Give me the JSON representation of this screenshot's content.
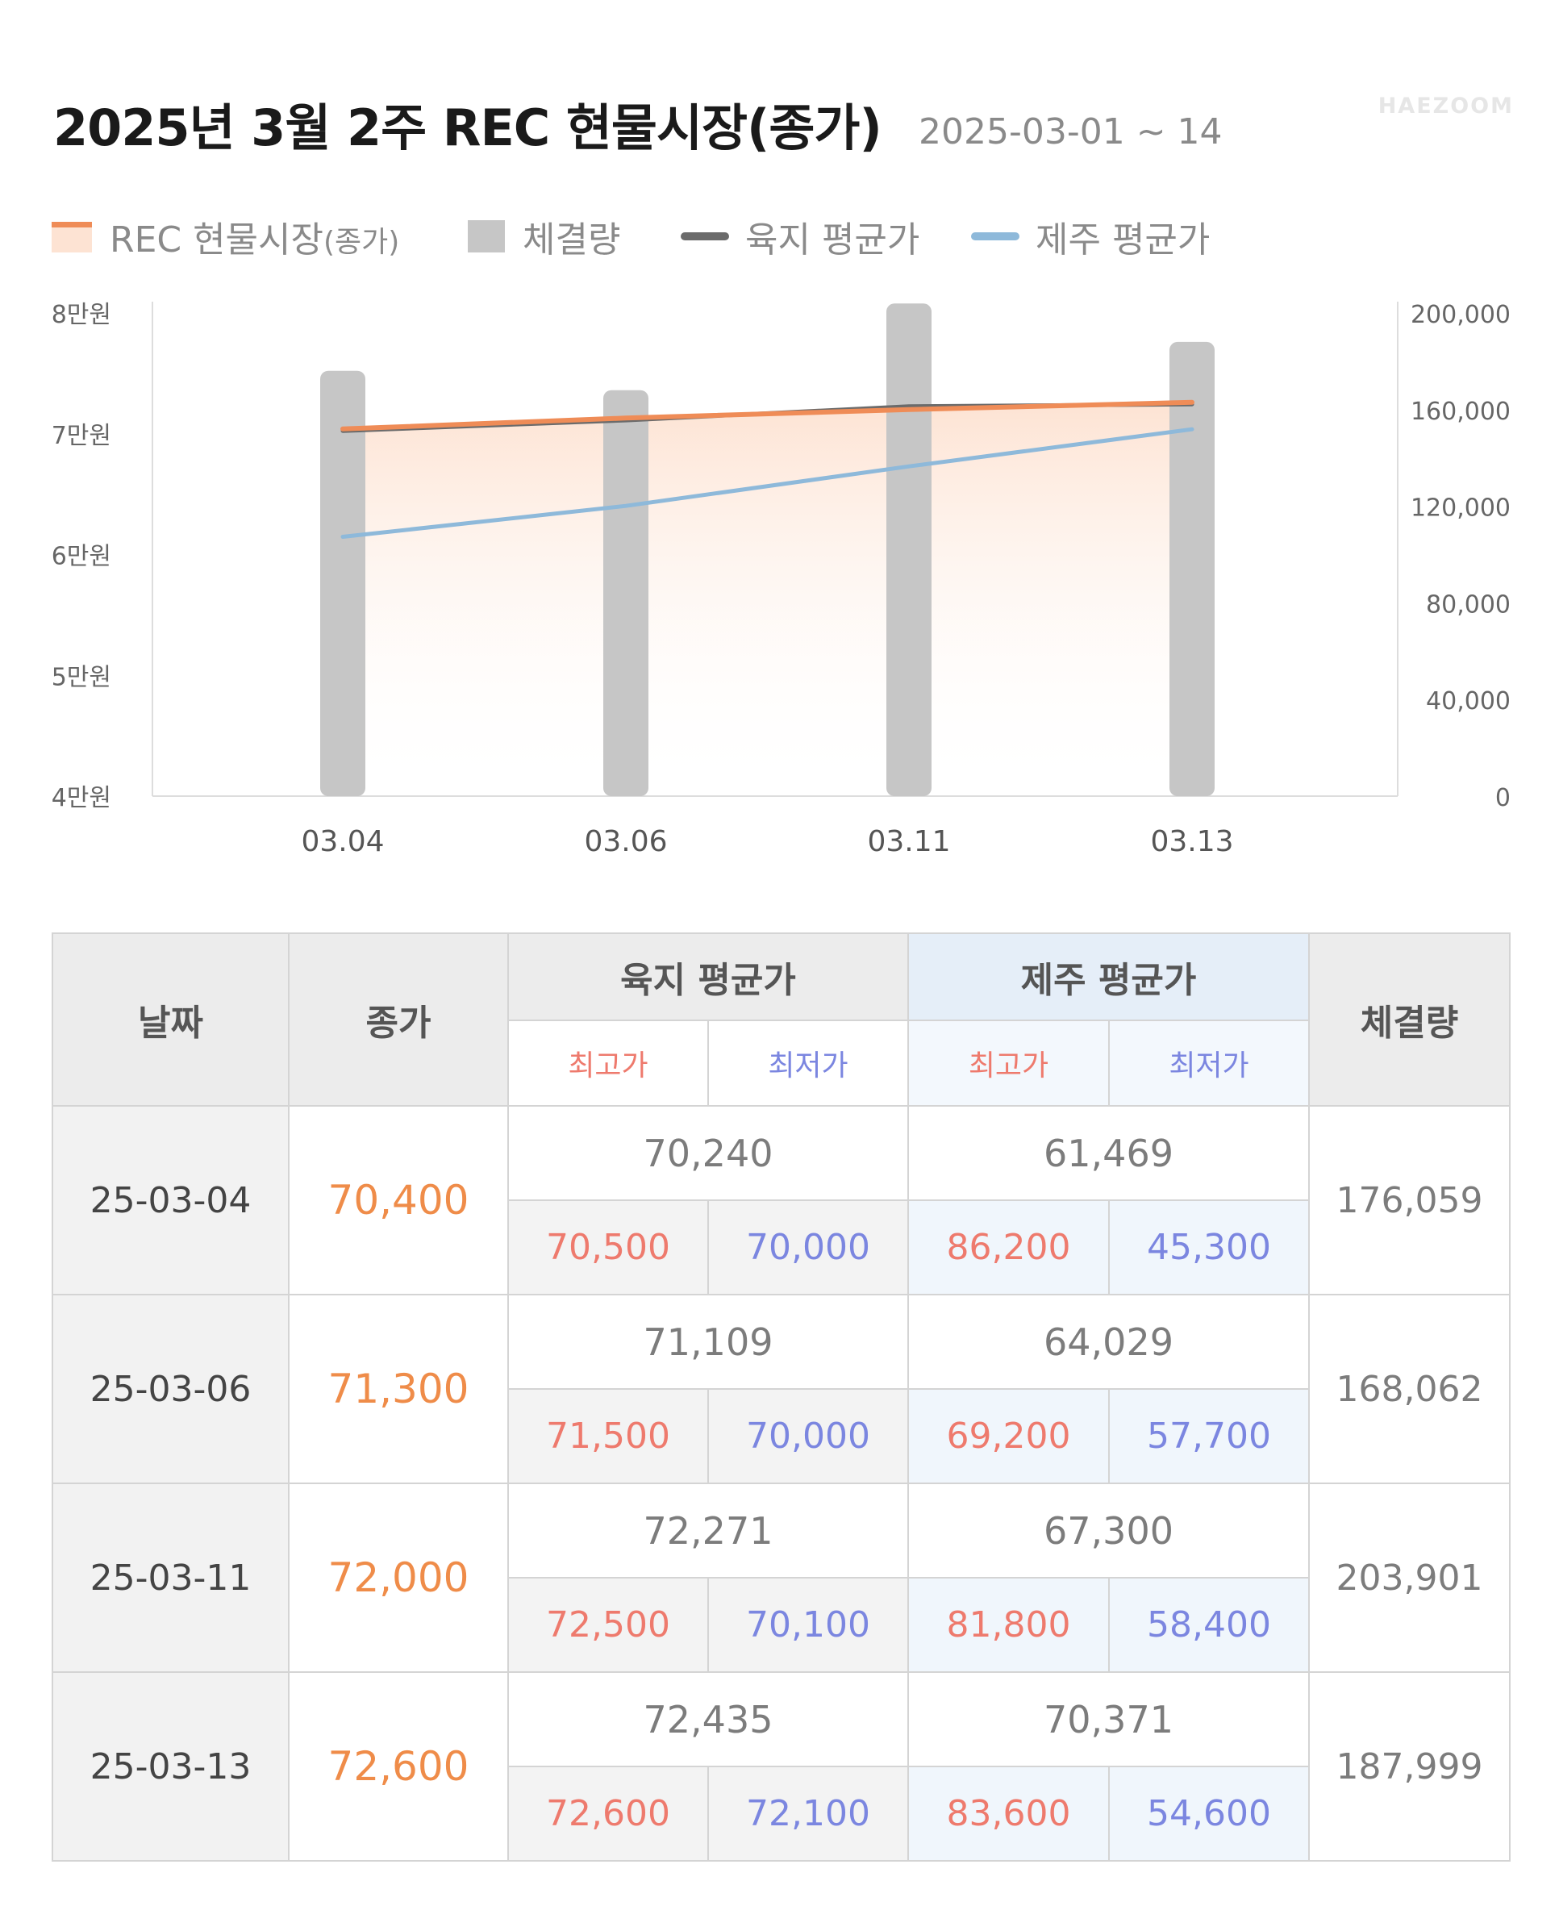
{
  "header": {
    "title": "2025년 3월 2주 REC 현물시장(종가)",
    "date_range": "2025-03-01 ~ 14",
    "watermark": "HAEZOOM"
  },
  "legend": {
    "rec_main": "REC 현물시장",
    "rec_suffix": "(종가)",
    "volume": "체결량",
    "land": "육지 평균가",
    "jeju": "제주 평균가"
  },
  "colors": {
    "rec": "#ef8c57",
    "rec_fill": "#fde3d3",
    "volume": "#c6c6c6",
    "land": "#6b6b6b",
    "jeju": "#8eb9da",
    "high": "#ee7a6d",
    "low": "#7b86e0"
  },
  "chart_data": {
    "type": "bar",
    "categories": [
      "03.04",
      "03.06",
      "03.11",
      "03.13"
    ],
    "series": [
      {
        "name": "체결량",
        "type": "bar",
        "axis": "right",
        "values": [
          176059,
          168062,
          203901,
          187999
        ]
      },
      {
        "name": "REC 현물시장(종가)",
        "type": "area",
        "axis": "left",
        "values": [
          70400,
          71300,
          72000,
          72600
        ]
      },
      {
        "name": "육지 평균가",
        "type": "line",
        "axis": "left",
        "values": [
          70240,
          71109,
          72271,
          72435
        ]
      },
      {
        "name": "제주 평균가",
        "type": "line",
        "axis": "left",
        "values": [
          61469,
          64029,
          67300,
          70371
        ]
      }
    ],
    "left_axis": {
      "ticks": [
        "8만원",
        "7만원",
        "6만원",
        "5만원",
        "4만원"
      ],
      "ylim": [
        40000,
        80000
      ]
    },
    "right_axis": {
      "ticks": [
        "200,000",
        "160,000",
        "120,000",
        "80,000",
        "40,000",
        "0"
      ],
      "ylim": [
        0,
        200000
      ]
    },
    "legend_position": "top-left"
  },
  "table": {
    "headers": {
      "date": "날짜",
      "close": "종가",
      "land": "육지 평균가",
      "jeju": "제주 평균가",
      "volume": "체결량",
      "high": "최고가",
      "low": "최저가"
    },
    "rows": [
      {
        "date": "25-03-04",
        "close": "70,400",
        "land_avg": "70,240",
        "jeju_avg": "61,469",
        "land_high": "70,500",
        "land_low": "70,000",
        "jeju_high": "86,200",
        "jeju_low": "45,300",
        "volume": "176,059"
      },
      {
        "date": "25-03-06",
        "close": "71,300",
        "land_avg": "71,109",
        "jeju_avg": "64,029",
        "land_high": "71,500",
        "land_low": "70,000",
        "jeju_high": "69,200",
        "jeju_low": "57,700",
        "volume": "168,062"
      },
      {
        "date": "25-03-11",
        "close": "72,000",
        "land_avg": "72,271",
        "jeju_avg": "67,300",
        "land_high": "72,500",
        "land_low": "70,100",
        "jeju_high": "81,800",
        "jeju_low": "58,400",
        "volume": "203,901"
      },
      {
        "date": "25-03-13",
        "close": "72,600",
        "land_avg": "72,435",
        "jeju_avg": "70,371",
        "land_high": "72,600",
        "land_low": "72,100",
        "jeju_high": "83,600",
        "jeju_low": "54,600",
        "volume": "187,999"
      }
    ]
  }
}
